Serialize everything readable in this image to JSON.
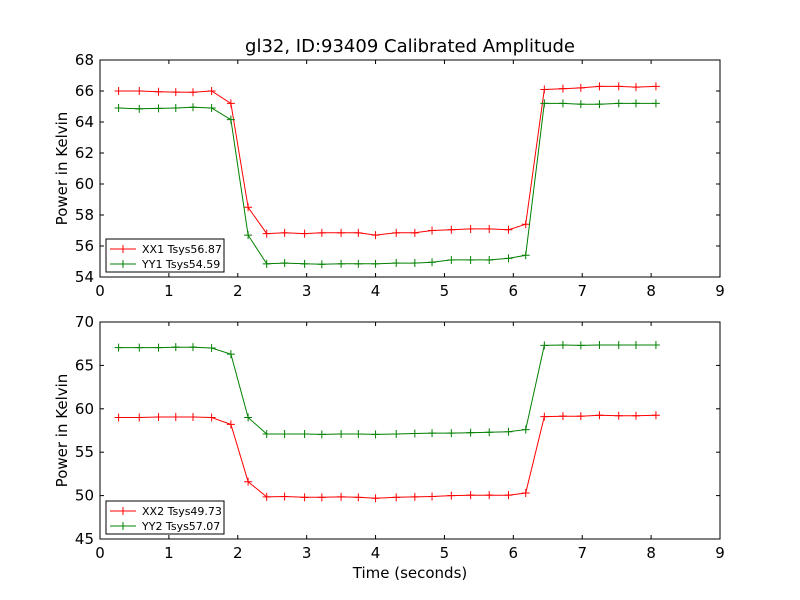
{
  "figure": {
    "title": "gl32, ID:93409 Calibrated Amplitude",
    "xlabel": "Time (seconds)"
  },
  "chart_data": [
    {
      "type": "line",
      "ylabel": "Power in Kelvin",
      "xlim": [
        0,
        9
      ],
      "ylim": [
        54,
        68
      ],
      "xticks": [
        0,
        1,
        2,
        3,
        4,
        5,
        6,
        7,
        8,
        9
      ],
      "yticks": [
        54,
        56,
        58,
        60,
        62,
        64,
        66,
        68
      ],
      "legend_position": "lower-left",
      "x": [
        0.27,
        0.57,
        0.85,
        1.1,
        1.35,
        1.62,
        1.9,
        2.15,
        2.42,
        2.68,
        2.97,
        3.22,
        3.5,
        3.75,
        4.0,
        4.3,
        4.57,
        4.82,
        5.1,
        5.38,
        5.65,
        5.93,
        6.18,
        6.45,
        6.72,
        6.98,
        7.25,
        7.53,
        7.78,
        8.07
      ],
      "series": [
        {
          "name": "XX1 Tsys56.87",
          "color": "#ff0000",
          "values": [
            66.0,
            66.0,
            65.95,
            65.93,
            65.92,
            66.0,
            65.2,
            58.5,
            56.8,
            56.85,
            56.8,
            56.85,
            56.85,
            56.85,
            56.7,
            56.85,
            56.85,
            57.0,
            57.05,
            57.1,
            57.1,
            57.05,
            57.4,
            66.1,
            66.15,
            66.2,
            66.3,
            66.3,
            66.25,
            66.3
          ]
        },
        {
          "name": "YY1 Tsys54.59",
          "color": "#008000",
          "values": [
            64.9,
            64.85,
            64.88,
            64.9,
            64.95,
            64.9,
            64.15,
            56.7,
            54.85,
            54.9,
            54.85,
            54.82,
            54.85,
            54.85,
            54.85,
            54.9,
            54.9,
            54.95,
            55.1,
            55.1,
            55.1,
            55.2,
            55.4,
            65.2,
            65.2,
            65.15,
            65.15,
            65.2,
            65.2,
            65.2
          ]
        }
      ]
    },
    {
      "type": "line",
      "ylabel": "Power in Kelvin",
      "xlabel": "Time (seconds)",
      "xlim": [
        0,
        9
      ],
      "ylim": [
        45,
        70
      ],
      "xticks": [
        0,
        1,
        2,
        3,
        4,
        5,
        6,
        7,
        8,
        9
      ],
      "yticks": [
        45,
        50,
        55,
        60,
        65,
        70
      ],
      "legend_position": "lower-left",
      "x": [
        0.27,
        0.57,
        0.85,
        1.1,
        1.35,
        1.62,
        1.9,
        2.15,
        2.42,
        2.68,
        2.97,
        3.22,
        3.5,
        3.75,
        4.0,
        4.3,
        4.57,
        4.82,
        5.1,
        5.38,
        5.65,
        5.93,
        6.18,
        6.45,
        6.72,
        6.98,
        7.25,
        7.53,
        7.78,
        8.07
      ],
      "series": [
        {
          "name": "XX2 Tsys49.73",
          "color": "#ff0000",
          "values": [
            59.0,
            59.0,
            59.05,
            59.05,
            59.05,
            59.0,
            58.2,
            51.6,
            49.85,
            49.9,
            49.8,
            49.8,
            49.85,
            49.8,
            49.7,
            49.8,
            49.85,
            49.9,
            50.0,
            50.05,
            50.05,
            50.05,
            50.3,
            59.1,
            59.15,
            59.15,
            59.25,
            59.2,
            59.2,
            59.25
          ]
        },
        {
          "name": "YY2 Tsys57.07",
          "color": "#008000",
          "values": [
            67.05,
            67.05,
            67.05,
            67.1,
            67.1,
            67.0,
            66.3,
            59.0,
            57.1,
            57.1,
            57.1,
            57.05,
            57.1,
            57.1,
            57.05,
            57.1,
            57.15,
            57.2,
            57.2,
            57.25,
            57.3,
            57.35,
            57.6,
            67.3,
            67.35,
            67.3,
            67.35,
            67.35,
            67.35,
            67.35
          ]
        }
      ]
    }
  ]
}
